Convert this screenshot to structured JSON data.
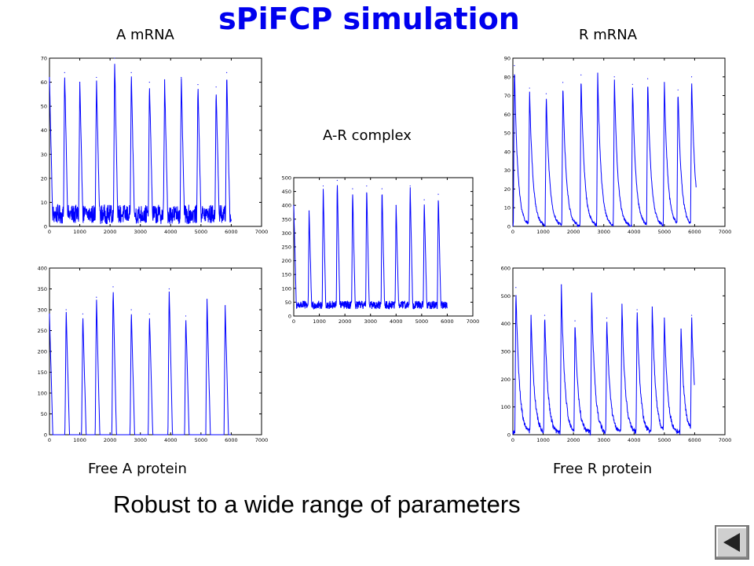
{
  "slide": {
    "title": "sPiFCP simulation",
    "subtitle": "Robust to a wide range of parameters",
    "labels": {
      "a_mrna": "A mRNA",
      "r_mrna": "R mRNA",
      "ar_complex": "A-R complex",
      "free_a": "Free A protein",
      "free_r": "Free R protein"
    },
    "nav": {
      "icon": "previous-slide-icon"
    }
  },
  "colors": {
    "title": "#0000ee",
    "series": "#0000ff",
    "axes": "#000000"
  },
  "chart_data": [
    {
      "id": "a_mrna",
      "type": "line",
      "xlim": [
        0,
        7000
      ],
      "ylim": [
        0,
        70
      ],
      "xticks": [
        0,
        1000,
        2000,
        3000,
        4000,
        5000,
        6000,
        7000
      ],
      "yticks": [
        0,
        10,
        20,
        30,
        40,
        50,
        60,
        70
      ],
      "x_end": 6000,
      "baseline": 5,
      "noise": 4,
      "peak_shape": "spike",
      "peaks": [
        {
          "x": 0,
          "y": 62
        },
        {
          "x": 500,
          "y": 64
        },
        {
          "x": 1000,
          "y": 60
        },
        {
          "x": 1550,
          "y": 62
        },
        {
          "x": 2150,
          "y": 70
        },
        {
          "x": 2700,
          "y": 64
        },
        {
          "x": 3300,
          "y": 60
        },
        {
          "x": 3800,
          "y": 61
        },
        {
          "x": 4350,
          "y": 62
        },
        {
          "x": 4900,
          "y": 59
        },
        {
          "x": 5500,
          "y": 58
        },
        {
          "x": 5850,
          "y": 64
        }
      ]
    },
    {
      "id": "r_mrna",
      "type": "line",
      "xlim": [
        0,
        7000
      ],
      "ylim": [
        0,
        90
      ],
      "xticks": [
        0,
        1000,
        2000,
        3000,
        4000,
        5000,
        6000,
        7000
      ],
      "yticks": [
        0,
        10,
        20,
        30,
        40,
        50,
        60,
        70,
        80,
        90
      ],
      "x_end": 6050,
      "baseline": 0,
      "noise": 1,
      "peak_shape": "decay",
      "peaks": [
        {
          "x": 50,
          "y": 86
        },
        {
          "x": 550,
          "y": 74
        },
        {
          "x": 1100,
          "y": 71
        },
        {
          "x": 1650,
          "y": 77
        },
        {
          "x": 2250,
          "y": 81
        },
        {
          "x": 2800,
          "y": 82
        },
        {
          "x": 3350,
          "y": 80
        },
        {
          "x": 3950,
          "y": 76
        },
        {
          "x": 4450,
          "y": 79
        },
        {
          "x": 5000,
          "y": 77
        },
        {
          "x": 5450,
          "y": 73
        },
        {
          "x": 5900,
          "y": 80
        }
      ]
    },
    {
      "id": "ar_complex",
      "type": "line",
      "xlim": [
        0,
        7000
      ],
      "ylim": [
        0,
        500
      ],
      "xticks": [
        0,
        1000,
        2000,
        3000,
        4000,
        5000,
        6000,
        7000
      ],
      "yticks": [
        0,
        50,
        100,
        150,
        200,
        250,
        300,
        350,
        400,
        450,
        500
      ],
      "x_end": 6000,
      "baseline": 40,
      "noise": 15,
      "peak_shape": "spike",
      "peaks": [
        {
          "x": 0,
          "y": 400
        },
        {
          "x": 600,
          "y": 380
        },
        {
          "x": 1150,
          "y": 470
        },
        {
          "x": 1700,
          "y": 490
        },
        {
          "x": 2300,
          "y": 460
        },
        {
          "x": 2850,
          "y": 470
        },
        {
          "x": 3450,
          "y": 460
        },
        {
          "x": 4000,
          "y": 400
        },
        {
          "x": 4550,
          "y": 470
        },
        {
          "x": 5100,
          "y": 420
        },
        {
          "x": 5650,
          "y": 440
        }
      ]
    },
    {
      "id": "free_a",
      "type": "line",
      "xlim": [
        0,
        7000
      ],
      "ylim": [
        0,
        400
      ],
      "xticks": [
        0,
        1000,
        2000,
        3000,
        4000,
        5000,
        6000,
        7000
      ],
      "yticks": [
        0,
        50,
        100,
        150,
        200,
        250,
        300,
        350,
        400
      ],
      "x_end": 6000,
      "baseline": 0,
      "noise": 0,
      "peak_shape": "spike",
      "peaks": [
        {
          "x": 0,
          "y": 290
        },
        {
          "x": 550,
          "y": 300
        },
        {
          "x": 1100,
          "y": 290
        },
        {
          "x": 1550,
          "y": 330
        },
        {
          "x": 2100,
          "y": 355
        },
        {
          "x": 2700,
          "y": 300
        },
        {
          "x": 3300,
          "y": 290
        },
        {
          "x": 3950,
          "y": 350
        },
        {
          "x": 4500,
          "y": 285
        },
        {
          "x": 5200,
          "y": 325
        },
        {
          "x": 5800,
          "y": 310
        }
      ]
    },
    {
      "id": "free_r",
      "type": "line",
      "xlim": [
        0,
        7000
      ],
      "ylim": [
        0,
        600
      ],
      "xticks": [
        0,
        1000,
        2000,
        3000,
        4000,
        5000,
        6000,
        7000
      ],
      "yticks": [
        0,
        100,
        200,
        300,
        400,
        500,
        600
      ],
      "x_end": 6000,
      "baseline": 10,
      "noise": 12,
      "peak_shape": "decay",
      "peaks": [
        {
          "x": 100,
          "y": 530
        },
        {
          "x": 600,
          "y": 430
        },
        {
          "x": 1050,
          "y": 430
        },
        {
          "x": 1600,
          "y": 540
        },
        {
          "x": 2050,
          "y": 410
        },
        {
          "x": 2600,
          "y": 510
        },
        {
          "x": 3100,
          "y": 420
        },
        {
          "x": 3600,
          "y": 470
        },
        {
          "x": 4100,
          "y": 450
        },
        {
          "x": 4600,
          "y": 460
        },
        {
          "x": 5000,
          "y": 420
        },
        {
          "x": 5550,
          "y": 380
        },
        {
          "x": 5900,
          "y": 430
        }
      ]
    }
  ]
}
